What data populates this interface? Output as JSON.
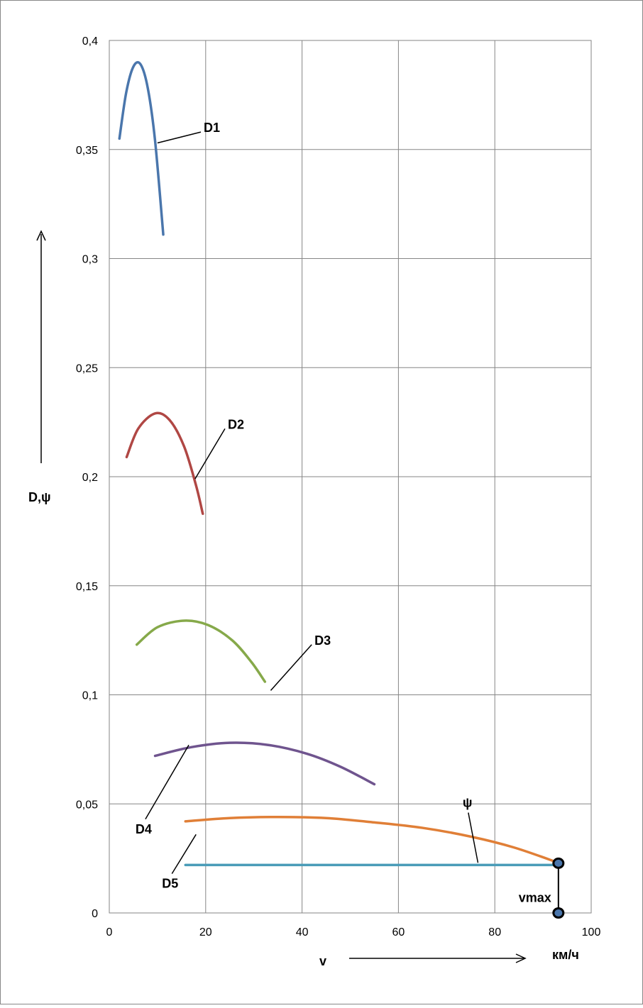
{
  "chart_data": {
    "type": "line",
    "title": "",
    "xlabel": "v",
    "xunit": "км/ч",
    "ylabel": "D,ψ",
    "xlim": [
      0,
      100
    ],
    "ylim": [
      0,
      0.4
    ],
    "grid": true,
    "x_ticks": [
      0,
      20,
      40,
      60,
      80,
      100
    ],
    "x_tick_labels": [
      "0",
      "20",
      "40",
      "60",
      "80",
      "100"
    ],
    "y_ticks": [
      0,
      0.05,
      0.1,
      0.15,
      0.2,
      0.25,
      0.3,
      0.35,
      0.4
    ],
    "y_tick_labels": [
      "0",
      "0,05",
      "0,1",
      "0,15",
      "0,2",
      "0,25",
      "0,3",
      "0,35",
      "0,4"
    ],
    "series": [
      {
        "name": "D1",
        "color": "#4a76ac",
        "points": [
          [
            2.1,
            0.355
          ],
          [
            3.5,
            0.376
          ],
          [
            5.0,
            0.388
          ],
          [
            6.5,
            0.389
          ],
          [
            8.0,
            0.378
          ],
          [
            9.5,
            0.354
          ],
          [
            11.2,
            0.311
          ]
        ]
      },
      {
        "name": "D2",
        "color": "#b04744",
        "points": [
          [
            3.6,
            0.209
          ],
          [
            6.0,
            0.222
          ],
          [
            9.5,
            0.229
          ],
          [
            12.5,
            0.226
          ],
          [
            15.5,
            0.214
          ],
          [
            18.0,
            0.196
          ],
          [
            19.4,
            0.183
          ]
        ]
      },
      {
        "name": "D3",
        "color": "#86a94a",
        "points": [
          [
            5.7,
            0.123
          ],
          [
            10.0,
            0.131
          ],
          [
            15.5,
            0.134
          ],
          [
            20.5,
            0.132
          ],
          [
            25.5,
            0.125
          ],
          [
            29.5,
            0.115
          ],
          [
            32.3,
            0.106
          ]
        ]
      },
      {
        "name": "D4",
        "color": "#6f548e",
        "points": [
          [
            9.5,
            0.072
          ],
          [
            17.0,
            0.076
          ],
          [
            25.0,
            0.078
          ],
          [
            33.0,
            0.077
          ],
          [
            41.0,
            0.073
          ],
          [
            48.0,
            0.067
          ],
          [
            55.0,
            0.059
          ]
        ]
      },
      {
        "name": "D5",
        "color": "#e07f37",
        "points": [
          [
            15.8,
            0.042
          ],
          [
            25.0,
            0.0435
          ],
          [
            35.0,
            0.044
          ],
          [
            45.0,
            0.0435
          ],
          [
            55.0,
            0.0415
          ],
          [
            65.0,
            0.039
          ],
          [
            75.0,
            0.035
          ],
          [
            84.0,
            0.03
          ],
          [
            93.2,
            0.023
          ]
        ]
      },
      {
        "name": "ψ",
        "color": "#4a9cb8",
        "points": [
          [
            15.8,
            0.022
          ],
          [
            93.2,
            0.022
          ]
        ]
      }
    ],
    "annotations": [
      {
        "text": "D1",
        "anchor": [
          10,
          0.353
        ],
        "label_at": [
          19,
          0.358
        ]
      },
      {
        "text": "D2",
        "anchor": [
          17.8,
          0.199
        ],
        "label_at": [
          24,
          0.222
        ]
      },
      {
        "text": "D3",
        "anchor": [
          33.5,
          0.102
        ],
        "label_at": [
          42,
          0.123
        ]
      },
      {
        "text": "D4",
        "anchor": [
          16.5,
          0.077
        ],
        "label_at": [
          7.5,
          0.043
        ]
      },
      {
        "text": "D5",
        "anchor": [
          18,
          0.036
        ],
        "label_at": [
          13,
          0.018
        ]
      },
      {
        "text": "ψ",
        "anchor": [
          76.5,
          0.023
        ],
        "label_at": [
          74.5,
          0.046
        ]
      },
      {
        "text": "vmax",
        "anchor": [
          93.2,
          0.0115
        ],
        "label_at": [
          89.5,
          0.007
        ]
      }
    ],
    "vmax_marker": {
      "label": "vmax",
      "x": 93.2,
      "y_top": 0.0228,
      "y_bottom": 0.0
    }
  }
}
